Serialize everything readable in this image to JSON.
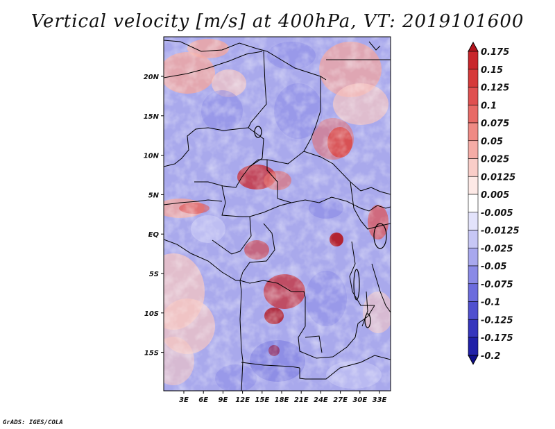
{
  "title": "Vertical velocity [m/s] at 400hPa, VT: 2019101600",
  "footer": "GrADS: IGES/COLA",
  "map": {
    "variable": "Vertical velocity",
    "units": "m/s",
    "level": "400hPa",
    "valid_time": "2019101600",
    "x_ticks": [
      "3E",
      "6E",
      "9E",
      "12E",
      "15E",
      "18E",
      "21E",
      "24E",
      "27E",
      "30E",
      "33E"
    ],
    "y_ticks": [
      "20N",
      "15N",
      "10N",
      "5N",
      "EQ",
      "5S",
      "10S",
      "15S"
    ]
  },
  "colorbar": {
    "levels": [
      "0.175",
      "0.15",
      "0.125",
      "0.1",
      "0.075",
      "0.05",
      "0.025",
      "0.0125",
      "0.005",
      "-0.005",
      "-0.0125",
      "-0.025",
      "-0.05",
      "-0.075",
      "-0.1",
      "-0.125",
      "-0.175",
      "-0.2"
    ],
    "colors": [
      "#b3141d",
      "#c9262b",
      "#d63a3a",
      "#e05050",
      "#e86a66",
      "#ef8a84",
      "#f5aca6",
      "#f9cdc8",
      "#fde9e6",
      "#ffffff",
      "#e3e3fb",
      "#c7c7f5",
      "#a8a8ee",
      "#8a8ae6",
      "#6c6cdd",
      "#5050cf",
      "#3535bd",
      "#2020a8",
      "#0e0e8a"
    ]
  }
}
